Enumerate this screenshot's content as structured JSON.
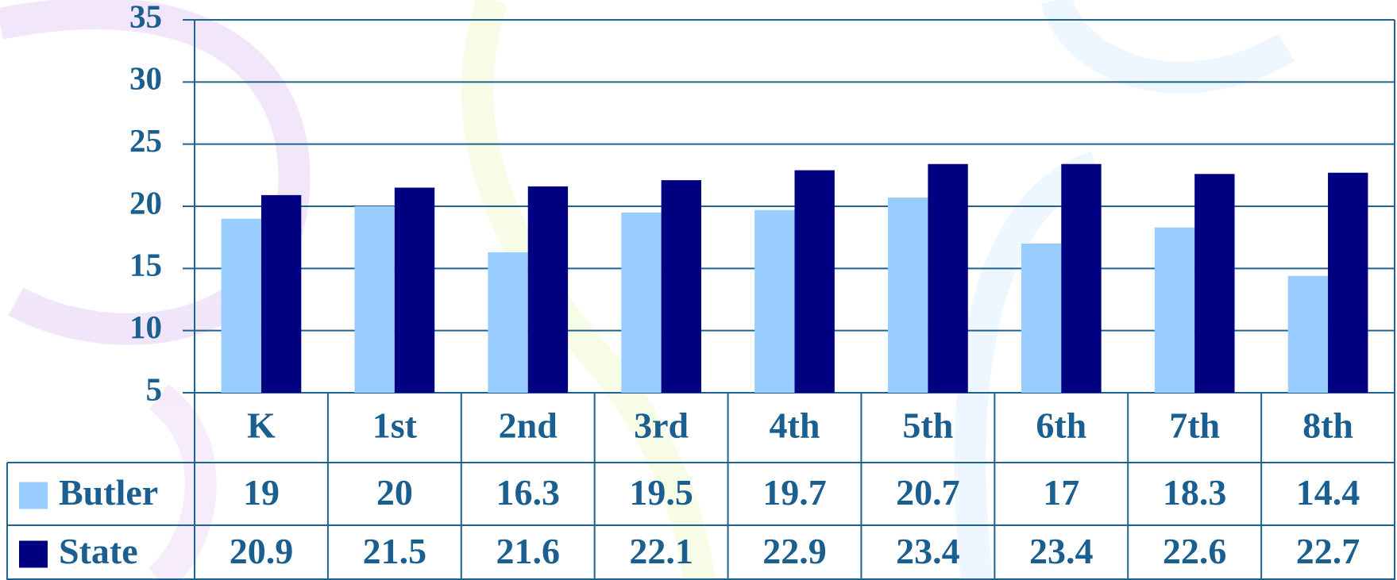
{
  "chart_data": {
    "type": "bar",
    "categories": [
      "K",
      "1st",
      "2nd",
      "3rd",
      "4th",
      "5th",
      "6th",
      "7th",
      "8th"
    ],
    "series": [
      {
        "name": "Butler",
        "color": "#99ccff",
        "values": [
          19,
          20,
          16.3,
          19.5,
          19.7,
          20.7,
          17,
          18.3,
          14.4
        ]
      },
      {
        "name": "State",
        "color": "#000080",
        "values": [
          20.9,
          21.5,
          21.6,
          22.1,
          22.9,
          23.4,
          23.4,
          22.6,
          22.7
        ]
      }
    ],
    "ylim": [
      5,
      35
    ],
    "yticks": [
      5,
      10,
      15,
      20,
      25,
      30,
      35
    ],
    "grid": true
  }
}
